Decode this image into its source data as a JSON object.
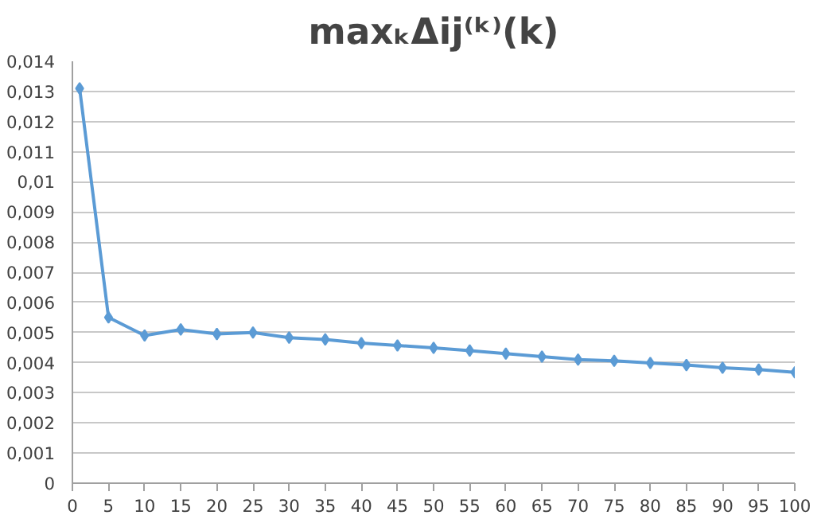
{
  "chart_data": {
    "type": "line",
    "title": "maxₖΔij⁽ᵏ⁾(k)",
    "x": [
      1,
      5,
      10,
      15,
      20,
      25,
      30,
      35,
      40,
      45,
      50,
      55,
      60,
      65,
      70,
      75,
      80,
      85,
      90,
      95,
      100
    ],
    "series": [
      {
        "color": "#5b9bd5",
        "values": [
          0.0131,
          0.0055,
          0.0049,
          0.0051,
          0.00495,
          0.005,
          0.00483,
          0.00477,
          0.00465,
          0.00457,
          0.00449,
          0.0044,
          0.0043,
          0.0042,
          0.0041,
          0.00406,
          0.00399,
          0.00392,
          0.00383,
          0.00377,
          0.00368
        ]
      }
    ],
    "xlim": [
      0,
      100
    ],
    "xticks": [
      0,
      5,
      10,
      15,
      20,
      25,
      30,
      35,
      40,
      45,
      50,
      55,
      60,
      65,
      70,
      75,
      80,
      85,
      90,
      95,
      100
    ],
    "ylim": [
      0,
      0.014
    ],
    "yticks": [
      {
        "value": 0,
        "label": "0"
      },
      {
        "value": 0.001,
        "label": "0,001"
      },
      {
        "value": 0.002,
        "label": "0,002"
      },
      {
        "value": 0.003,
        "label": "0,003"
      },
      {
        "value": 0.004,
        "label": "0,004"
      },
      {
        "value": 0.005,
        "label": "0,005"
      },
      {
        "value": 0.006,
        "label": "0,006"
      },
      {
        "value": 0.007,
        "label": "0,007"
      },
      {
        "value": 0.008,
        "label": "0,008"
      },
      {
        "value": 0.009,
        "label": "0,009"
      },
      {
        "value": 0.01,
        "label": "0,01"
      },
      {
        "value": 0.011,
        "label": "0,011"
      },
      {
        "value": 0.012,
        "label": "0,012"
      },
      {
        "value": 0.013,
        "label": "0,013"
      },
      {
        "value": 0.014,
        "label": "0,014"
      }
    ],
    "grid": "y",
    "marker": "diamond",
    "line_style": "solid"
  }
}
